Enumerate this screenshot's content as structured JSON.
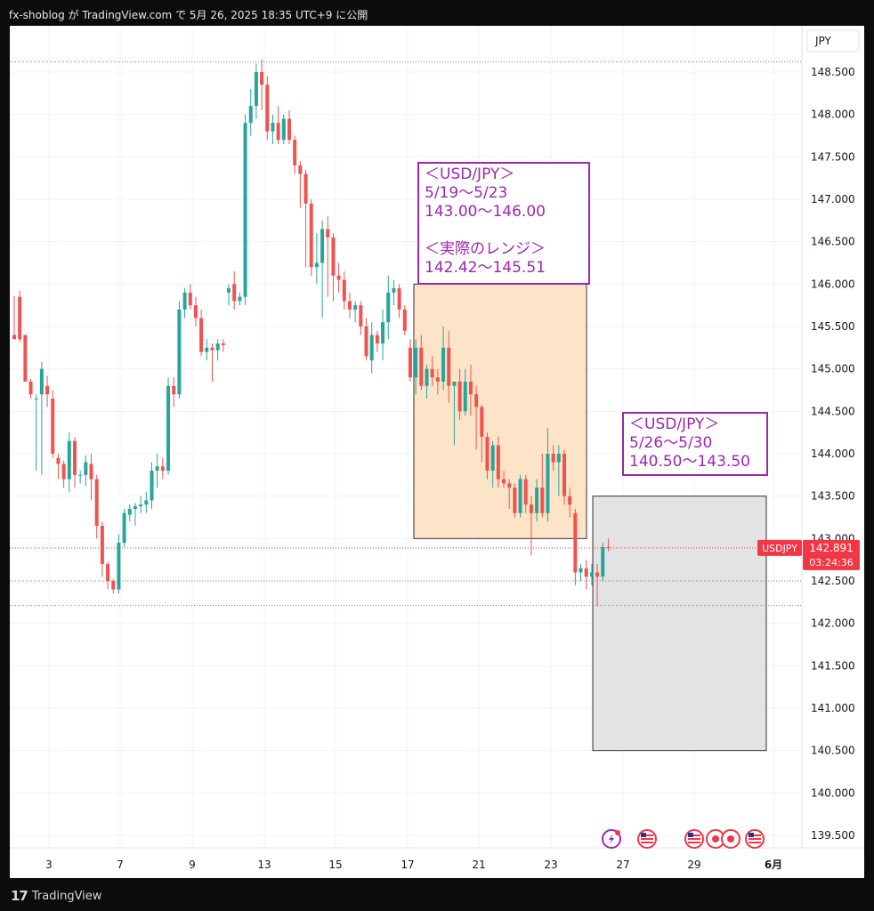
{
  "header": {
    "publish_line": "fx-shoblog が TradingView.com で 5月 26, 2025 18:35 UTC+9 に公開"
  },
  "footer": {
    "brand": "TradingView"
  },
  "annotations": {
    "forecast_week1": "＜USD/JPY＞\n5/19〜5/23\n143.00〜146.00\n\n＜実際のレンジ＞\n142.42〜145.51",
    "forecast_week2": "＜USD/JPY＞\n5/26〜5/30\n140.50〜143.50"
  },
  "colors": {
    "up": "#26a69a",
    "down": "#ef5350",
    "annotation": "#9c27b0",
    "range1_fill": "#fde3c8",
    "range2_fill": "#e3e3e3",
    "price_label": "#f23645"
  },
  "chart_data": {
    "type": "candlestick",
    "symbol": "USDJPY",
    "currency_label": "JPY",
    "last_price_label": "142.891",
    "countdown_label": "03:24:36",
    "y_range": [
      139.3,
      148.9
    ],
    "y_ticks": [
      "148.500",
      "148.000",
      "147.500",
      "147.000",
      "146.500",
      "146.000",
      "145.500",
      "145.000",
      "144.500",
      "144.000",
      "143.500",
      "143.000",
      "142.500",
      "142.000",
      "141.500",
      "141.000",
      "140.500",
      "140.000",
      "139.500"
    ],
    "x_ticks": [
      "3",
      "7",
      "9",
      "13",
      "15",
      "17",
      "21",
      "23",
      "27",
      "29",
      "6月"
    ],
    "horizontal_lines": [
      148.62,
      142.89,
      142.5,
      142.21
    ],
    "ranges": [
      {
        "from": 143.0,
        "to": 146.0
      },
      {
        "from": 140.5,
        "to": 143.5
      }
    ],
    "candles": [
      [
        145.4,
        145.86,
        145.35,
        145.35
      ],
      [
        145.85,
        145.92,
        145.32,
        145.35
      ],
      [
        145.4,
        145.4,
        144.85,
        144.85
      ],
      [
        144.85,
        144.88,
        144.65,
        144.7
      ],
      [
        144.65,
        144.7,
        143.8,
        144.65
      ],
      [
        144.7,
        145.08,
        143.75,
        145.0
      ],
      [
        144.8,
        144.92,
        144.55,
        144.7
      ],
      [
        144.65,
        144.75,
        143.95,
        144.0
      ],
      [
        143.95,
        144.0,
        143.7,
        143.88
      ],
      [
        143.88,
        143.92,
        143.6,
        143.7
      ],
      [
        143.7,
        144.25,
        143.55,
        144.15
      ],
      [
        144.15,
        144.2,
        143.6,
        143.75
      ],
      [
        143.75,
        143.8,
        143.65,
        143.75
      ],
      [
        143.75,
        143.98,
        143.62,
        143.9
      ],
      [
        143.88,
        144.0,
        143.45,
        143.7
      ],
      [
        143.7,
        143.75,
        143.0,
        143.15
      ],
      [
        143.15,
        143.2,
        142.55,
        142.7
      ],
      [
        142.7,
        142.72,
        142.4,
        142.5
      ],
      [
        142.5,
        142.52,
        142.35,
        142.4
      ],
      [
        142.4,
        143.05,
        142.35,
        142.95
      ],
      [
        142.95,
        143.35,
        142.9,
        143.3
      ],
      [
        143.28,
        143.4,
        143.2,
        143.35
      ],
      [
        143.35,
        143.42,
        143.15,
        143.38
      ],
      [
        143.38,
        143.5,
        143.3,
        143.4
      ],
      [
        143.4,
        143.55,
        143.3,
        143.45
      ],
      [
        143.45,
        143.9,
        143.35,
        143.8
      ],
      [
        143.8,
        144.0,
        143.6,
        143.85
      ],
      [
        143.85,
        143.95,
        143.7,
        143.8
      ],
      [
        143.8,
        144.9,
        143.75,
        144.8
      ],
      [
        144.8,
        144.9,
        144.55,
        144.7
      ],
      [
        144.7,
        145.8,
        144.65,
        145.7
      ],
      [
        145.7,
        145.95,
        145.6,
        145.9
      ],
      [
        145.9,
        146.0,
        145.7,
        145.75
      ],
      [
        145.75,
        145.85,
        145.5,
        145.6
      ],
      [
        145.6,
        145.7,
        145.15,
        145.2
      ],
      [
        145.2,
        145.35,
        145.1,
        145.25
      ],
      [
        145.25,
        145.3,
        144.85,
        145.22
      ],
      [
        145.22,
        145.35,
        145.1,
        145.3
      ],
      [
        145.3,
        145.35,
        145.2,
        145.28
      ],
      [
        145.9,
        146.0,
        145.75,
        145.95
      ],
      [
        146.0,
        146.15,
        145.7,
        145.8
      ],
      [
        145.8,
        145.9,
        145.75,
        145.85
      ],
      [
        145.85,
        148.0,
        145.75,
        147.9
      ],
      [
        147.9,
        148.3,
        147.75,
        148.1
      ],
      [
        148.1,
        148.6,
        147.95,
        148.5
      ],
      [
        148.5,
        148.65,
        148.05,
        148.35
      ],
      [
        148.35,
        148.45,
        147.7,
        147.8
      ],
      [
        147.8,
        148.0,
        147.65,
        147.9
      ],
      [
        147.9,
        148.1,
        147.65,
        147.7
      ],
      [
        147.7,
        148.0,
        147.65,
        147.95
      ],
      [
        147.95,
        148.05,
        147.65,
        147.7
      ],
      [
        147.7,
        147.75,
        147.3,
        147.4
      ],
      [
        147.4,
        147.45,
        146.9,
        147.3
      ],
      [
        147.3,
        147.35,
        146.2,
        146.95
      ],
      [
        146.95,
        147.0,
        146.1,
        146.2
      ],
      [
        146.2,
        146.6,
        146.0,
        146.25
      ],
      [
        146.25,
        146.75,
        145.6,
        146.65
      ],
      [
        146.65,
        146.8,
        145.85,
        146.55
      ],
      [
        146.55,
        146.6,
        145.8,
        146.1
      ],
      [
        146.1,
        146.25,
        145.9,
        146.05
      ],
      [
        146.05,
        146.15,
        145.7,
        145.8
      ],
      [
        145.8,
        145.9,
        145.6,
        145.7
      ],
      [
        145.7,
        145.8,
        145.55,
        145.75
      ],
      [
        145.75,
        145.8,
        145.4,
        145.5
      ],
      [
        145.5,
        145.6,
        145.1,
        145.15
      ],
      [
        145.1,
        145.55,
        144.95,
        145.4
      ],
      [
        145.4,
        145.45,
        145.2,
        145.3
      ],
      [
        145.3,
        145.7,
        145.1,
        145.55
      ],
      [
        145.55,
        146.1,
        145.35,
        145.9
      ],
      [
        145.9,
        146.05,
        145.75,
        145.95
      ],
      [
        145.95,
        146.0,
        145.6,
        145.7
      ],
      [
        145.7,
        145.75,
        145.4,
        145.45
      ],
      [
        145.25,
        145.35,
        144.85,
        144.9
      ],
      [
        144.9,
        145.35,
        144.7,
        145.25
      ],
      [
        145.25,
        145.4,
        144.75,
        144.8
      ],
      [
        144.8,
        145.05,
        144.65,
        145.0
      ],
      [
        145.0,
        145.15,
        144.8,
        144.9
      ],
      [
        144.9,
        145.0,
        144.7,
        144.85
      ],
      [
        144.85,
        145.5,
        144.75,
        145.25
      ],
      [
        145.25,
        145.45,
        144.6,
        144.8
      ],
      [
        144.8,
        144.85,
        144.1,
        144.85
      ],
      [
        144.85,
        145.0,
        144.4,
        144.5
      ],
      [
        144.5,
        145.0,
        144.45,
        144.85
      ],
      [
        144.85,
        145.05,
        144.45,
        144.7
      ],
      [
        144.7,
        144.8,
        144.05,
        144.55
      ],
      [
        144.55,
        144.58,
        143.9,
        144.2
      ],
      [
        144.2,
        144.25,
        143.7,
        143.8
      ],
      [
        143.8,
        144.15,
        143.6,
        144.1
      ],
      [
        144.1,
        144.2,
        143.6,
        143.7
      ],
      [
        143.7,
        143.8,
        143.6,
        143.65
      ],
      [
        143.65,
        143.7,
        143.35,
        143.6
      ],
      [
        143.6,
        143.65,
        143.25,
        143.3
      ],
      [
        143.3,
        143.75,
        143.25,
        143.7
      ],
      [
        143.7,
        143.75,
        143.3,
        143.4
      ],
      [
        143.4,
        143.5,
        142.8,
        143.3
      ],
      [
        143.3,
        143.7,
        143.2,
        143.6
      ],
      [
        143.6,
        144.0,
        143.25,
        143.3
      ],
      [
        143.3,
        144.3,
        143.2,
        144.0
      ],
      [
        144.0,
        144.1,
        143.8,
        143.9
      ],
      [
        143.9,
        144.1,
        143.5,
        144.0
      ],
      [
        144.0,
        144.05,
        143.4,
        143.5
      ],
      [
        143.5,
        143.6,
        143.25,
        143.4
      ],
      [
        143.3,
        143.35,
        142.45,
        142.6
      ],
      [
        142.6,
        142.7,
        142.5,
        142.65
      ],
      [
        142.65,
        142.75,
        142.4,
        142.55
      ],
      [
        142.55,
        142.7,
        142.45,
        142.6
      ],
      [
        142.6,
        142.7,
        142.2,
        142.55
      ],
      [
        142.55,
        142.95,
        142.5,
        142.9
      ],
      [
        142.9,
        143.0,
        142.85,
        142.89
      ]
    ],
    "events": [
      {
        "type": "lightning",
        "slot": 0
      },
      {
        "type": "us-flag",
        "slot": 1
      },
      {
        "type": "us-flag",
        "slot": 2
      },
      {
        "type": "circle-red",
        "slot": 3
      },
      {
        "type": "circle-red",
        "slot": 4
      },
      {
        "type": "us-flag",
        "slot": 5
      }
    ]
  }
}
